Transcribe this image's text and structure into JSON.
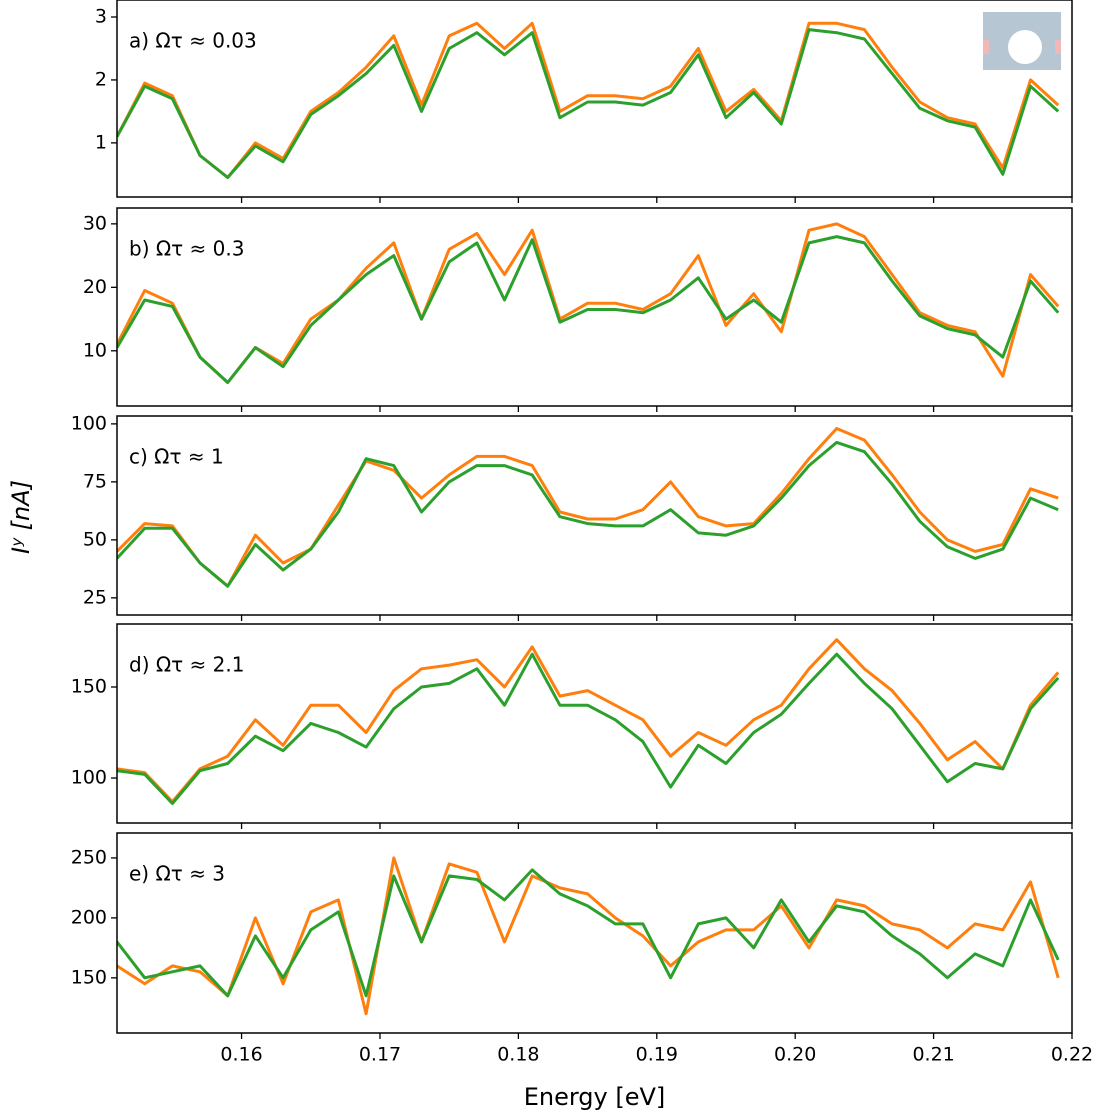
{
  "chart_data": [
    {
      "type": "line",
      "annotation": "a) Ωτ ≈  0.03",
      "x": [
        0.151,
        0.153,
        0.155,
        0.157,
        0.159,
        0.161,
        0.163,
        0.165,
        0.167,
        0.169,
        0.171,
        0.173,
        0.175,
        0.177,
        0.179,
        0.181,
        0.183,
        0.185,
        0.187,
        0.189,
        0.191,
        0.193,
        0.195,
        0.197,
        0.199,
        0.201,
        0.203,
        0.205,
        0.207,
        0.209,
        0.211,
        0.213,
        0.215,
        0.217,
        0.219
      ],
      "xlim": [
        0.151,
        0.22
      ],
      "ylim": [
        0.14,
        3.27
      ],
      "yticks": [
        1,
        2,
        3
      ],
      "series": [
        {
          "color": "#ff7f0e",
          "values": [
            1.1,
            1.95,
            1.75,
            0.8,
            0.45,
            1.0,
            0.75,
            1.5,
            1.8,
            2.2,
            2.7,
            1.6,
            2.7,
            2.9,
            2.5,
            2.9,
            1.5,
            1.75,
            1.75,
            1.7,
            1.9,
            2.5,
            1.5,
            1.85,
            1.35,
            2.9,
            2.9,
            2.8,
            2.2,
            1.65,
            1.4,
            1.3,
            0.6,
            2.0,
            1.6
          ]
        },
        {
          "color": "#2ca02c",
          "values": [
            1.1,
            1.9,
            1.7,
            0.8,
            0.45,
            0.95,
            0.7,
            1.45,
            1.75,
            2.1,
            2.55,
            1.5,
            2.5,
            2.75,
            2.4,
            2.75,
            1.4,
            1.65,
            1.65,
            1.6,
            1.8,
            2.4,
            1.4,
            1.8,
            1.3,
            2.8,
            2.75,
            2.65,
            2.1,
            1.55,
            1.35,
            1.25,
            0.5,
            1.9,
            1.5
          ]
        }
      ]
    },
    {
      "type": "line",
      "annotation": "b) Ωτ ≈  0.3",
      "x": [
        0.151,
        0.153,
        0.155,
        0.157,
        0.159,
        0.161,
        0.163,
        0.165,
        0.167,
        0.169,
        0.171,
        0.173,
        0.175,
        0.177,
        0.179,
        0.181,
        0.183,
        0.185,
        0.187,
        0.189,
        0.191,
        0.193,
        0.195,
        0.197,
        0.199,
        0.201,
        0.203,
        0.205,
        0.207,
        0.209,
        0.211,
        0.213,
        0.215,
        0.217,
        0.219
      ],
      "xlim": [
        0.151,
        0.22
      ],
      "ylim": [
        1.3,
        32.5
      ],
      "yticks": [
        10,
        20,
        30
      ],
      "series": [
        {
          "color": "#ff7f0e",
          "values": [
            11,
            19.5,
            17.5,
            9,
            5,
            10.5,
            8,
            15,
            18,
            23,
            27,
            15,
            26,
            28.5,
            22,
            29,
            15,
            17.5,
            17.5,
            16.5,
            19,
            25,
            14,
            19,
            13,
            29,
            30,
            28,
            22,
            16,
            14,
            13,
            6,
            22,
            17
          ]
        },
        {
          "color": "#2ca02c",
          "values": [
            10.5,
            18,
            17,
            9,
            5,
            10.5,
            7.5,
            14,
            18,
            22,
            25,
            15,
            24,
            27,
            18,
            27.5,
            14.5,
            16.5,
            16.5,
            16,
            18,
            21.5,
            15,
            18,
            14.5,
            27,
            28,
            27,
            21,
            15.5,
            13.5,
            12.5,
            9,
            21,
            16
          ]
        }
      ]
    },
    {
      "type": "line",
      "annotation": "c) Ωτ ≈  1",
      "ylabel": "Iʸ [nA]",
      "x": [
        0.151,
        0.153,
        0.155,
        0.157,
        0.159,
        0.161,
        0.163,
        0.165,
        0.167,
        0.169,
        0.171,
        0.173,
        0.175,
        0.177,
        0.179,
        0.181,
        0.183,
        0.185,
        0.187,
        0.189,
        0.191,
        0.193,
        0.195,
        0.197,
        0.199,
        0.201,
        0.203,
        0.205,
        0.207,
        0.209,
        0.211,
        0.213,
        0.215,
        0.217,
        0.219
      ],
      "xlim": [
        0.151,
        0.22
      ],
      "ylim": [
        17.6,
        103.4
      ],
      "yticks": [
        25,
        50,
        75,
        100
      ],
      "series": [
        {
          "color": "#ff7f0e",
          "values": [
            45,
            57,
            56,
            40,
            30,
            52,
            40,
            46,
            65,
            84,
            80,
            68,
            78,
            86,
            86,
            82,
            62,
            59,
            59,
            63,
            75,
            60,
            56,
            57,
            70,
            85,
            98,
            93,
            78,
            62,
            50,
            45,
            48,
            72,
            68
          ]
        },
        {
          "color": "#2ca02c",
          "values": [
            42,
            55,
            55,
            40,
            30,
            48,
            37,
            46,
            62,
            85,
            82,
            62,
            75,
            82,
            82,
            78,
            60,
            57,
            56,
            56,
            63,
            53,
            52,
            56,
            68,
            82,
            92,
            88,
            74,
            58,
            47,
            42,
            46,
            68,
            63
          ]
        }
      ]
    },
    {
      "type": "line",
      "annotation": "d) Ωτ ≈  2.1",
      "x": [
        0.151,
        0.153,
        0.155,
        0.157,
        0.159,
        0.161,
        0.163,
        0.165,
        0.167,
        0.169,
        0.171,
        0.173,
        0.175,
        0.177,
        0.179,
        0.181,
        0.183,
        0.185,
        0.187,
        0.189,
        0.191,
        0.193,
        0.195,
        0.197,
        0.199,
        0.201,
        0.203,
        0.205,
        0.207,
        0.209,
        0.211,
        0.213,
        0.215,
        0.217,
        0.219
      ],
      "xlim": [
        0.151,
        0.22
      ],
      "ylim": [
        75.3,
        184.6
      ],
      "yticks": [
        100,
        150
      ],
      "series": [
        {
          "color": "#ff7f0e",
          "values": [
            105,
            103,
            87,
            105,
            112,
            132,
            118,
            140,
            140,
            125,
            148,
            160,
            162,
            165,
            150,
            172,
            145,
            148,
            140,
            132,
            112,
            125,
            118,
            132,
            140,
            160,
            176,
            160,
            148,
            130,
            110,
            120,
            105,
            140,
            158
          ]
        },
        {
          "color": "#2ca02c",
          "values": [
            104,
            102,
            86,
            104,
            108,
            123,
            115,
            130,
            125,
            117,
            138,
            150,
            152,
            160,
            140,
            168,
            140,
            140,
            132,
            120,
            95,
            118,
            108,
            125,
            135,
            152,
            168,
            152,
            138,
            118,
            98,
            108,
            105,
            138,
            155
          ]
        }
      ]
    },
    {
      "type": "line",
      "annotation": "e) Ωτ ≈  3",
      "xlabel": "Energy [eV]",
      "x": [
        0.151,
        0.153,
        0.155,
        0.157,
        0.159,
        0.161,
        0.163,
        0.165,
        0.167,
        0.169,
        0.171,
        0.173,
        0.175,
        0.177,
        0.179,
        0.181,
        0.183,
        0.185,
        0.187,
        0.189,
        0.191,
        0.193,
        0.195,
        0.197,
        0.199,
        0.201,
        0.203,
        0.205,
        0.207,
        0.209,
        0.211,
        0.213,
        0.215,
        0.217,
        0.219
      ],
      "xlim": [
        0.151,
        0.22
      ],
      "ylim": [
        104,
        270.8
      ],
      "yticks": [
        150,
        200,
        250
      ],
      "xticks": [
        0.16,
        0.17,
        0.18,
        0.19,
        {
          "value": 0.2,
          "label": "0.20"
        },
        0.21,
        0.22
      ],
      "series": [
        {
          "color": "#ff7f0e",
          "values": [
            160,
            145,
            160,
            155,
            135,
            200,
            145,
            205,
            215,
            120,
            250,
            180,
            245,
            238,
            180,
            235,
            225,
            220,
            200,
            185,
            160,
            180,
            190,
            190,
            210,
            175,
            215,
            210,
            195,
            190,
            175,
            195,
            190,
            230,
            150
          ]
        },
        {
          "color": "#2ca02c",
          "values": [
            180,
            150,
            155,
            160,
            135,
            185,
            150,
            190,
            205,
            135,
            235,
            180,
            235,
            232,
            215,
            240,
            220,
            210,
            195,
            195,
            150,
            195,
            200,
            175,
            215,
            180,
            210,
            205,
            185,
            170,
            150,
            170,
            160,
            215,
            165
          ]
        }
      ]
    }
  ]
}
